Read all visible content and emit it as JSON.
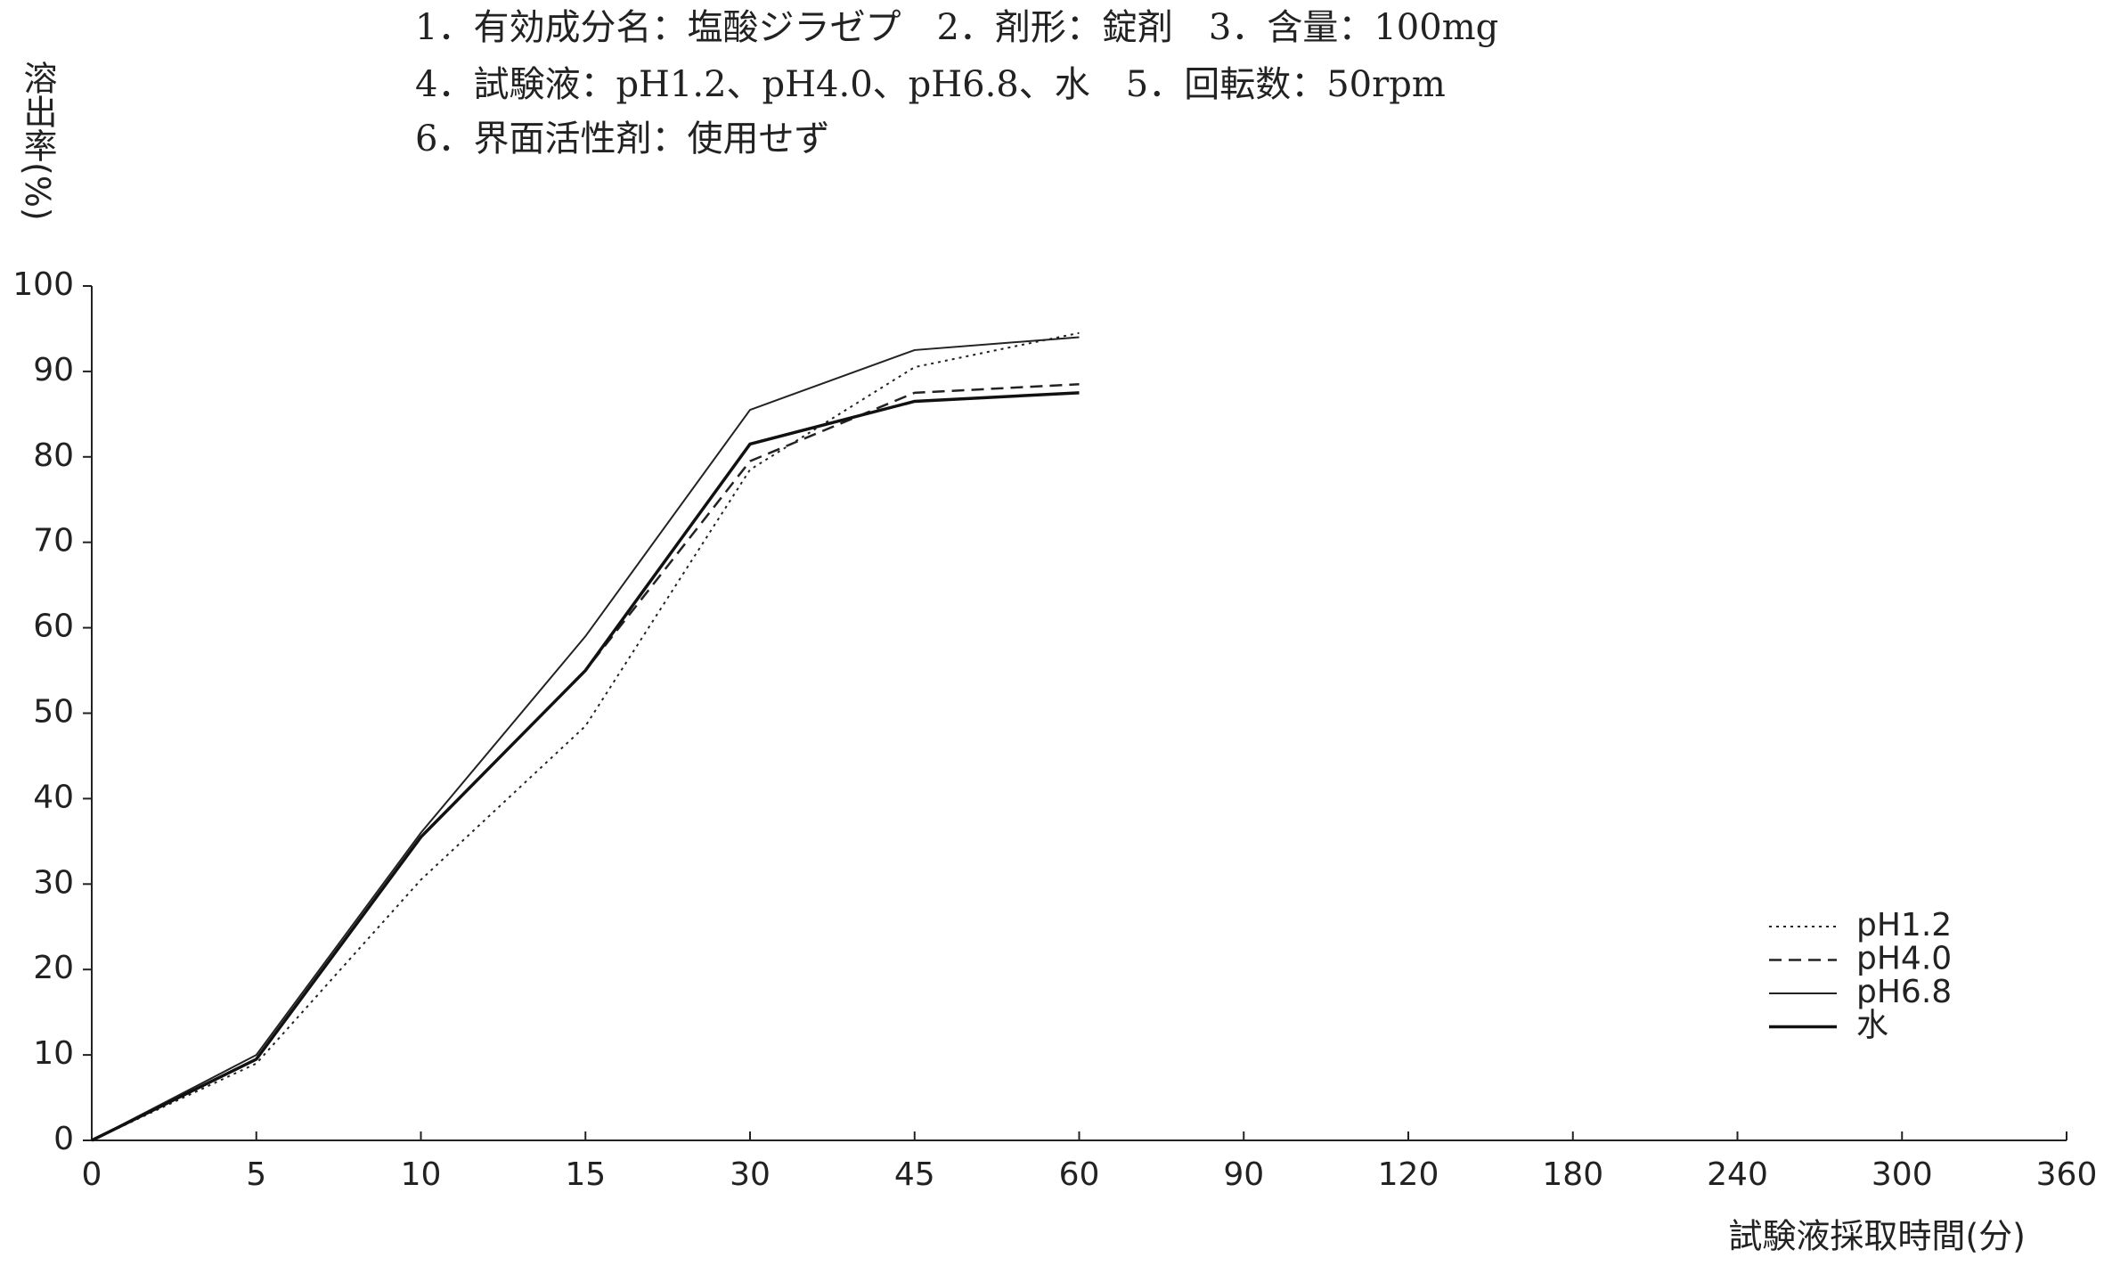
{
  "chart_data": {
    "type": "line",
    "header_lines": [
      "1．有効成分名：塩酸ジラゼプ　2．剤形：錠剤　3．含量：100mg",
      "4．試験液：pH1.2、pH4.0、pH6.8、水　5．回転数：50rpm",
      "6．界面活性剤：使用せず"
    ],
    "y_label": "溶出率(%)",
    "x_label": "試験液採取時間(分)",
    "categories": [
      "0",
      "5",
      "10",
      "15",
      "30",
      "45",
      "60",
      "90",
      "120",
      "180",
      "240",
      "300",
      "360"
    ],
    "series": [
      {
        "name": "pH1.2",
        "color": "#222222",
        "dash": "dotted",
        "values": [
          0,
          9,
          30.5,
          48.5,
          78.5,
          90.5,
          94.5,
          null,
          null,
          null,
          null,
          null,
          null
        ]
      },
      {
        "name": "pH4.0",
        "color": "#222222",
        "dash": "dashed",
        "values": [
          0,
          9.5,
          35.5,
          55,
          79.5,
          87.5,
          88.5,
          null,
          null,
          null,
          null,
          null,
          null
        ]
      },
      {
        "name": "pH6.8",
        "color": "#222222",
        "dash": "solid",
        "values": [
          0,
          10,
          36,
          59,
          85.5,
          92.5,
          94,
          null,
          null,
          null,
          null,
          null,
          null
        ]
      },
      {
        "name": "水",
        "color": "#111111",
        "dash": "solid-bold",
        "values": [
          0,
          9.5,
          35.5,
          55,
          81.5,
          86.5,
          87.5,
          null,
          null,
          null,
          null,
          null,
          null
        ]
      }
    ],
    "ylim": [
      0,
      100
    ],
    "yticks": [
      0,
      10,
      20,
      30,
      40,
      50,
      60,
      70,
      80,
      90,
      100
    ],
    "legend": "lower right",
    "grid": false
  }
}
